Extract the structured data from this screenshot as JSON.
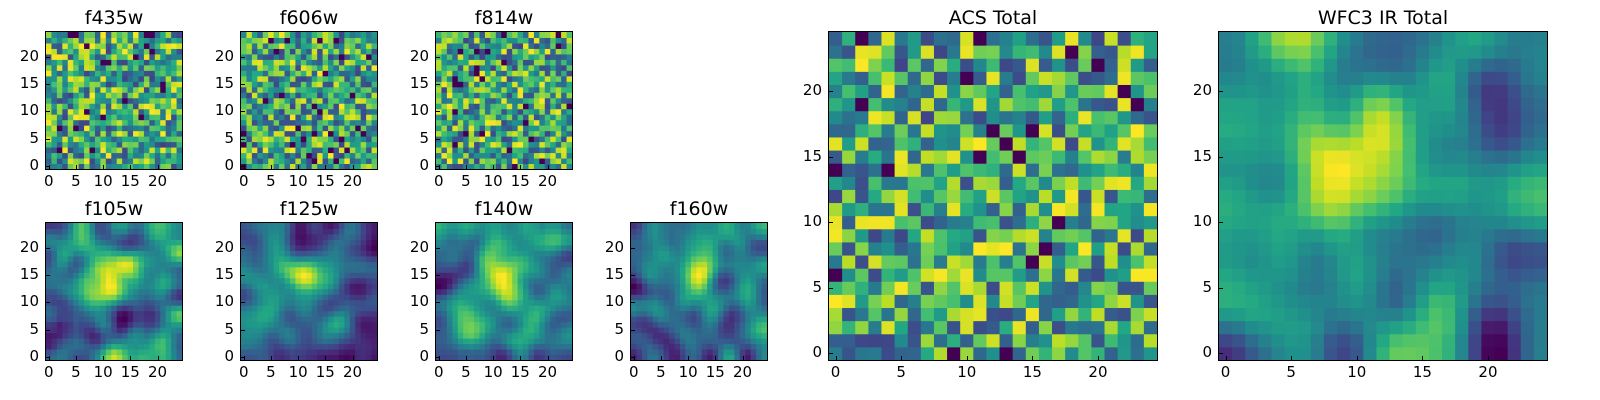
{
  "chart_data": [
    {
      "type": "heatmap",
      "title": "f435w",
      "grid": 25,
      "xlim": [
        0,
        24
      ],
      "ylim": [
        0,
        24
      ],
      "xticks": [
        "0",
        "5",
        "10",
        "15",
        "20"
      ],
      "yticks": [
        "0",
        "5",
        "10",
        "15",
        "20"
      ],
      "colormap": "viridis",
      "pattern": "noise",
      "seed": 11
    },
    {
      "type": "heatmap",
      "title": "f606w",
      "grid": 25,
      "xlim": [
        0,
        24
      ],
      "ylim": [
        0,
        24
      ],
      "xticks": [
        "0",
        "5",
        "10",
        "15",
        "20"
      ],
      "yticks": [
        "0",
        "5",
        "10",
        "15",
        "20"
      ],
      "colormap": "viridis",
      "pattern": "noise",
      "seed": 23
    },
    {
      "type": "heatmap",
      "title": "f814w",
      "grid": 25,
      "xlim": [
        0,
        24
      ],
      "ylim": [
        0,
        24
      ],
      "xticks": [
        "0",
        "5",
        "10",
        "15",
        "20"
      ],
      "yticks": [
        "0",
        "5",
        "10",
        "15",
        "20"
      ],
      "colormap": "viridis",
      "pattern": "noise",
      "seed": 37
    },
    {
      "type": "heatmap",
      "title": "f105w",
      "grid": 25,
      "xlim": [
        0,
        24
      ],
      "ylim": [
        0,
        24
      ],
      "xticks": [
        "0",
        "5",
        "10",
        "15",
        "20"
      ],
      "yticks": [
        "0",
        "5",
        "10",
        "15",
        "20"
      ],
      "colormap": "viridis",
      "pattern": "smooth",
      "seed": 41
    },
    {
      "type": "heatmap",
      "title": "f125w",
      "grid": 25,
      "xlim": [
        0,
        24
      ],
      "ylim": [
        0,
        24
      ],
      "xticks": [
        "0",
        "5",
        "10",
        "15",
        "20"
      ],
      "yticks": [
        "0",
        "5",
        "10",
        "15",
        "20"
      ],
      "colormap": "viridis",
      "pattern": "smooth",
      "seed": 53
    },
    {
      "type": "heatmap",
      "title": "f140w",
      "grid": 25,
      "xlim": [
        0,
        24
      ],
      "ylim": [
        0,
        24
      ],
      "xticks": [
        "0",
        "5",
        "10",
        "15",
        "20"
      ],
      "yticks": [
        "0",
        "5",
        "10",
        "15",
        "20"
      ],
      "colormap": "viridis",
      "pattern": "smooth",
      "seed": 67
    },
    {
      "type": "heatmap",
      "title": "f160w",
      "grid": 25,
      "xlim": [
        0,
        24
      ],
      "ylim": [
        0,
        24
      ],
      "xticks": [
        "0",
        "5",
        "10",
        "15",
        "20"
      ],
      "yticks": [
        "0",
        "5",
        "10",
        "15",
        "20"
      ],
      "colormap": "viridis",
      "pattern": "smooth",
      "seed": 79
    },
    {
      "type": "heatmap",
      "title": "ACS Total",
      "grid": 25,
      "xlim": [
        0,
        24
      ],
      "ylim": [
        0,
        24
      ],
      "xticks": [
        "0",
        "5",
        "10",
        "15",
        "20"
      ],
      "yticks": [
        "0",
        "5",
        "10",
        "15",
        "20"
      ],
      "colormap": "viridis",
      "pattern": "noise",
      "seed": 97
    },
    {
      "type": "heatmap",
      "title": "WFC3 IR Total",
      "grid": 25,
      "xlim": [
        0,
        24
      ],
      "ylim": [
        0,
        24
      ],
      "xticks": [
        "0",
        "5",
        "10",
        "15",
        "20"
      ],
      "yticks": [
        "0",
        "5",
        "10",
        "15",
        "20"
      ],
      "colormap": "viridis",
      "pattern": "smooth",
      "seed": 131
    }
  ]
}
